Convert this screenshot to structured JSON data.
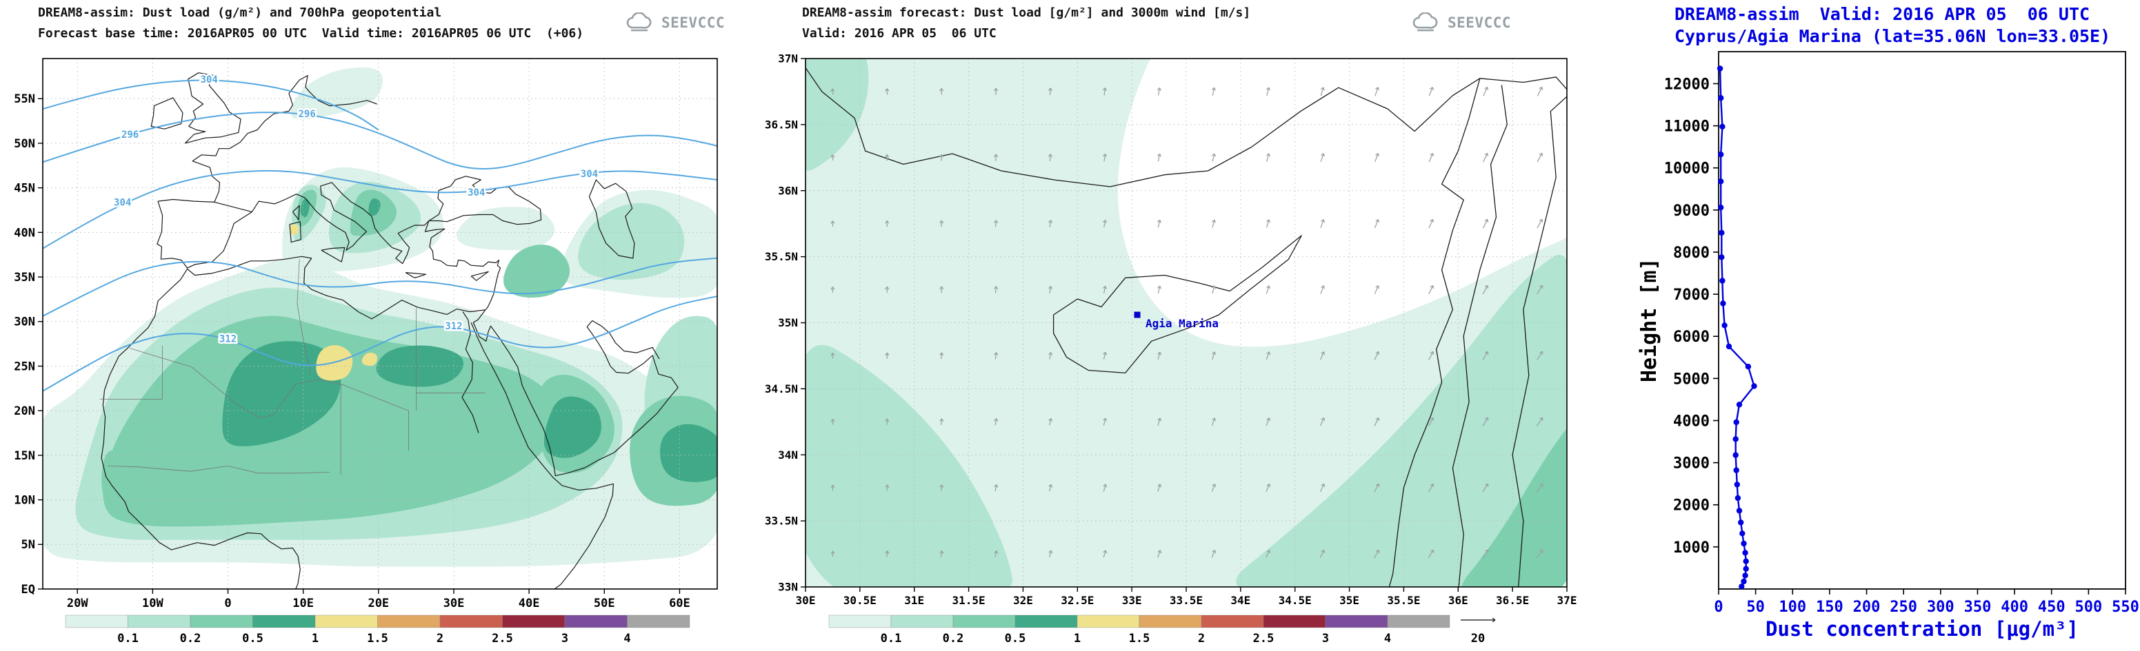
{
  "colors": {
    "title_blue": "#0000e0",
    "contour_blue": "#55a7e0",
    "grid": "#b5bdc2",
    "coast": "#1a1a1a",
    "border": "#777777",
    "wind_arrow": "#9aa2a6",
    "logo_gray": "#97a0a6",
    "station_blue": "#0000cc",
    "scale": [
      "#ddf2ea",
      "#b2e4d2",
      "#7dcfae",
      "#3fa988",
      "#eee28c",
      "#e0a763",
      "#cb6050",
      "#94273b",
      "#7c4d9b",
      "#a5a5a5"
    ]
  },
  "chart_data": [
    {
      "id": "dust-load-geopotential-map",
      "type": "map-contour",
      "title": "DREAM8-assim: Dust load (g/m²) and 700hPa geopotential",
      "subtitle": "Forecast base time: 2016APR05 00 UTC  Valid time: 2016APR05 06 UTC  (+06)",
      "logo": "SEEVCCC",
      "lon_range": [
        -24.6,
        65
      ],
      "lat_range": [
        0,
        59.5
      ],
      "x_ticks": [
        {
          "label": "20W",
          "v": -20
        },
        {
          "label": "10W",
          "v": -10
        },
        {
          "label": "0",
          "v": 0
        },
        {
          "label": "10E",
          "v": 10
        },
        {
          "label": "20E",
          "v": 20
        },
        {
          "label": "30E",
          "v": 30
        },
        {
          "label": "40E",
          "v": 40
        },
        {
          "label": "50E",
          "v": 50
        },
        {
          "label": "60E",
          "v": 60
        }
      ],
      "y_ticks": [
        {
          "label": "EQ",
          "v": 0
        },
        {
          "label": "5N",
          "v": 5
        },
        {
          "label": "10N",
          "v": 10
        },
        {
          "label": "15N",
          "v": 15
        },
        {
          "label": "20N",
          "v": 20
        },
        {
          "label": "25N",
          "v": 25
        },
        {
          "label": "30N",
          "v": 30
        },
        {
          "label": "35N",
          "v": 35
        },
        {
          "label": "40N",
          "v": 40
        },
        {
          "label": "45N",
          "v": 45
        },
        {
          "label": "50N",
          "v": 50
        },
        {
          "label": "55N",
          "v": 55
        }
      ],
      "colorbar_labels": [
        "0.1",
        "0.2",
        "0.5",
        "1",
        "1.5",
        "2",
        "2.5",
        "3",
        "4"
      ],
      "contour_labels": [
        {
          "text": "304",
          "lon": -2.5,
          "lat": 57.2
        },
        {
          "text": "296",
          "lon": 10.5,
          "lat": 53.3
        },
        {
          "text": "296",
          "lon": -13,
          "lat": 51.0
        },
        {
          "text": "304",
          "lon": -14,
          "lat": 43.4
        },
        {
          "text": "304",
          "lon": 33,
          "lat": 44.5
        },
        {
          "text": "304",
          "lon": 48,
          "lat": 46.6
        },
        {
          "text": "312",
          "lon": 0,
          "lat": 28.1
        },
        {
          "text": "312",
          "lon": 30,
          "lat": 29.5
        }
      ]
    },
    {
      "id": "cyprus-dust-wind-map",
      "type": "map-vector",
      "title": "DREAM8-assim forecast: Dust load [g/m²] and 3000m wind [m/s]",
      "subtitle": "Valid: 2016 APR 05  06 UTC",
      "logo": "SEEVCCC",
      "lon_range": [
        30,
        37
      ],
      "lat_range": [
        33,
        37
      ],
      "x_ticks": [
        {
          "label": "30E",
          "v": 30
        },
        {
          "label": "30.5E",
          "v": 30.5
        },
        {
          "label": "31E",
          "v": 31
        },
        {
          "label": "31.5E",
          "v": 31.5
        },
        {
          "label": "32E",
          "v": 32
        },
        {
          "label": "32.5E",
          "v": 32.5
        },
        {
          "label": "33E",
          "v": 33
        },
        {
          "label": "33.5E",
          "v": 33.5
        },
        {
          "label": "34E",
          "v": 34
        },
        {
          "label": "34.5E",
          "v": 34.5
        },
        {
          "label": "35E",
          "v": 35
        },
        {
          "label": "35.5E",
          "v": 35.5
        },
        {
          "label": "36E",
          "v": 36
        },
        {
          "label": "36.5E",
          "v": 36.5
        },
        {
          "label": "37E",
          "v": 37
        }
      ],
      "y_ticks": [
        {
          "label": "37N",
          "v": 37
        },
        {
          "label": "36.5N",
          "v": 36.5
        },
        {
          "label": "36N",
          "v": 36
        },
        {
          "label": "35.5N",
          "v": 35.5
        },
        {
          "label": "35N",
          "v": 35
        },
        {
          "label": "34.5N",
          "v": 34.5
        },
        {
          "label": "34N",
          "v": 34
        },
        {
          "label": "33.5N",
          "v": 33.5
        },
        {
          "label": "33N",
          "v": 33
        }
      ],
      "colorbar_labels": [
        "0.1",
        "0.2",
        "0.5",
        "1",
        "1.5",
        "2",
        "2.5",
        "3",
        "4"
      ],
      "wind_ref_label": "20",
      "station": {
        "name": "Agia Marina",
        "lon": 33.05,
        "lat": 35.06
      }
    },
    {
      "id": "dust-profile",
      "type": "line",
      "title": "DREAM8-assim  Valid: 2016 APR 05  06 UTC",
      "subtitle": "Cyprus/Agia Marina (lat=35.06N lon=33.05E)",
      "xlabel": "Dust concentration [μg/m³]",
      "ylabel": "Height [m]",
      "xlim": [
        0,
        550
      ],
      "ylim": [
        0,
        12760
      ],
      "x_tick_step": 50,
      "y_tick_step": 1000,
      "series": [
        {
          "name": "dust_concentration",
          "heights_m": [
            60,
            180,
            320,
            480,
            660,
            860,
            1080,
            1320,
            1580,
            1860,
            2160,
            2480,
            2820,
            3180,
            3560,
            3960,
            4380,
            4820,
            5280,
            5760,
            6260,
            6780,
            7320,
            7880,
            8460,
            9060,
            9680,
            10320,
            10980,
            11660,
            12360
          ],
          "values_ugm3": [
            31,
            34,
            36,
            37,
            37,
            36,
            34,
            32,
            30,
            28,
            26,
            25,
            24,
            23,
            23,
            24,
            28,
            48,
            40,
            14,
            8,
            6,
            5,
            4,
            4,
            3,
            3,
            3,
            5,
            3,
            2
          ]
        }
      ]
    }
  ]
}
